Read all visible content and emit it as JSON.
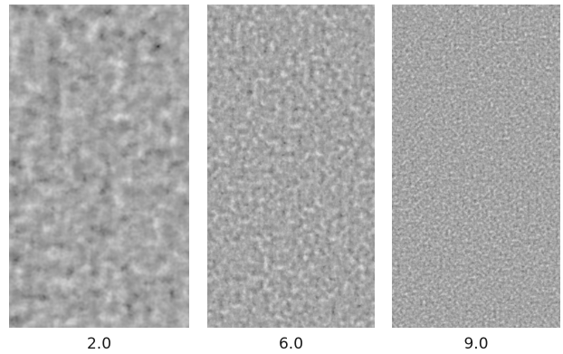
{
  "panels": [
    {
      "label": "2.0",
      "texture": "coarse-grain"
    },
    {
      "label": "6.0",
      "texture": "medium-grain"
    },
    {
      "label": "9.0",
      "texture": "fine-grain"
    }
  ]
}
